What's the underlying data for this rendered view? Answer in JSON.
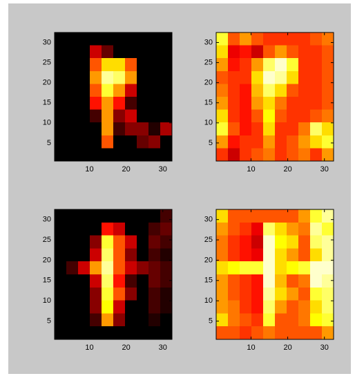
{
  "chart_data": [
    {
      "type": "heatmap",
      "colormap": "hot",
      "xlim": [
        0.5,
        32.5
      ],
      "ylim": [
        0.5,
        32.5
      ],
      "xticks": [
        10,
        20,
        30
      ],
      "yticks": [
        5,
        10,
        15,
        20,
        25,
        30
      ],
      "z": [
        [
          0,
          0,
          0,
          0,
          0,
          0,
          0,
          0,
          0,
          0
        ],
        [
          0,
          0,
          0,
          0.3,
          0.15,
          0,
          0,
          0,
          0,
          0
        ],
        [
          0,
          0,
          0,
          0.5,
          0.7,
          0.7,
          0.5,
          0,
          0,
          0
        ],
        [
          0,
          0,
          0,
          0.6,
          0.9,
          0.85,
          0.6,
          0,
          0,
          0
        ],
        [
          0,
          0,
          0,
          0.5,
          0.8,
          0.6,
          0.3,
          0,
          0,
          0
        ],
        [
          0,
          0,
          0,
          0.4,
          0.6,
          0.4,
          0.1,
          0,
          0,
          0
        ],
        [
          0,
          0,
          0,
          0.1,
          0.6,
          0.2,
          0.3,
          0,
          0,
          0
        ],
        [
          0,
          0,
          0,
          0,
          0.6,
          0.1,
          0.2,
          0.2,
          0.05,
          0.25
        ],
        [
          0,
          0,
          0,
          0,
          0.5,
          0,
          0,
          0.15,
          0.2,
          0
        ],
        [
          0,
          0,
          0,
          0,
          0,
          0,
          0,
          0,
          0,
          0
        ]
      ]
    },
    {
      "type": "heatmap",
      "colormap": "hot",
      "xlim": [
        0.5,
        32.5
      ],
      "ylim": [
        0.5,
        32.5
      ],
      "xticks": [
        10,
        20,
        30
      ],
      "yticks": [
        5,
        10,
        15,
        20,
        25,
        30
      ],
      "z": [
        [
          0.8,
          0.5,
          0.6,
          0.5,
          0.45,
          0.45,
          0.45,
          0.45,
          0.5,
          0.55
        ],
        [
          0.7,
          0.35,
          0.4,
          0.3,
          0.5,
          0.6,
          0.5,
          0.45,
          0.45,
          0.5
        ],
        [
          0.6,
          0.4,
          0.45,
          0.6,
          0.85,
          0.95,
          0.8,
          0.45,
          0.45,
          0.5
        ],
        [
          0.5,
          0.45,
          0.45,
          0.7,
          0.95,
          0.9,
          0.7,
          0.45,
          0.45,
          0.5
        ],
        [
          0.55,
          0.45,
          0.4,
          0.65,
          0.85,
          0.7,
          0.5,
          0.45,
          0.45,
          0.5
        ],
        [
          0.6,
          0.45,
          0.4,
          0.6,
          0.7,
          0.55,
          0.45,
          0.45,
          0.45,
          0.5
        ],
        [
          0.7,
          0.45,
          0.4,
          0.5,
          0.75,
          0.5,
          0.45,
          0.45,
          0.5,
          0.55
        ],
        [
          0.8,
          0.5,
          0.4,
          0.45,
          0.7,
          0.45,
          0.45,
          0.55,
          0.85,
          0.7
        ],
        [
          0.6,
          0.4,
          0.45,
          0.45,
          0.6,
          0.45,
          0.5,
          0.6,
          0.7,
          0.8
        ],
        [
          0.45,
          0.3,
          0.45,
          0.5,
          0.55,
          0.45,
          0.5,
          0.55,
          0.45,
          0.6
        ]
      ]
    },
    {
      "type": "heatmap",
      "colormap": "hot",
      "xlim": [
        0.5,
        32.5
      ],
      "ylim": [
        0.5,
        32.5
      ],
      "xticks": [
        10,
        20,
        30
      ],
      "yticks": [
        5,
        10,
        15,
        20,
        25,
        30
      ],
      "z": [
        [
          0,
          0,
          0,
          0,
          0,
          0,
          0,
          0,
          0,
          0.1
        ],
        [
          0,
          0,
          0,
          0,
          0.4,
          0.3,
          0,
          0,
          0.1,
          0.15
        ],
        [
          0,
          0,
          0,
          0.2,
          0.8,
          0.5,
          0.3,
          0,
          0.15,
          0.1
        ],
        [
          0,
          0,
          0,
          0.3,
          0.85,
          0.5,
          0.2,
          0,
          0.1,
          0.05
        ],
        [
          0,
          0.1,
          0.3,
          0.6,
          0.9,
          0.5,
          0.3,
          0.2,
          0.15,
          0.1
        ],
        [
          0,
          0,
          0,
          0.3,
          0.85,
          0.4,
          0.1,
          0,
          0.15,
          0.1
        ],
        [
          0,
          0,
          0,
          0.2,
          0.8,
          0.5,
          0.2,
          0,
          0.1,
          0.05
        ],
        [
          0,
          0,
          0,
          0.2,
          0.75,
          0.3,
          0,
          0,
          0.1,
          0.05
        ],
        [
          0,
          0,
          0,
          0.1,
          0.6,
          0.2,
          0,
          0,
          0.05,
          0
        ],
        [
          0,
          0,
          0,
          0,
          0,
          0,
          0,
          0,
          0,
          0
        ]
      ]
    },
    {
      "type": "heatmap",
      "colormap": "hot",
      "xlim": [
        0.5,
        32.5
      ],
      "ylim": [
        0.5,
        32.5
      ],
      "xticks": [
        10,
        20,
        30
      ],
      "yticks": [
        5,
        10,
        15,
        20,
        25,
        30
      ],
      "z": [
        [
          0.7,
          0.5,
          0.5,
          0.5,
          0.5,
          0.5,
          0.5,
          0.6,
          0.8,
          0.9
        ],
        [
          0.6,
          0.5,
          0.45,
          0.35,
          0.85,
          0.7,
          0.6,
          0.55,
          0.9,
          0.8
        ],
        [
          0.55,
          0.45,
          0.4,
          0.3,
          0.95,
          0.75,
          0.7,
          0.5,
          0.85,
          0.9
        ],
        [
          0.55,
          0.45,
          0.4,
          0.35,
          0.95,
          0.7,
          0.6,
          0.5,
          0.7,
          0.9
        ],
        [
          0.7,
          0.75,
          0.8,
          0.8,
          0.95,
          0.7,
          0.75,
          0.8,
          0.95,
          0.95
        ],
        [
          0.6,
          0.5,
          0.45,
          0.4,
          0.95,
          0.65,
          0.5,
          0.55,
          0.95,
          0.9
        ],
        [
          0.6,
          0.5,
          0.45,
          0.4,
          0.9,
          0.7,
          0.6,
          0.5,
          0.8,
          0.85
        ],
        [
          0.6,
          0.55,
          0.45,
          0.4,
          0.85,
          0.6,
          0.5,
          0.55,
          0.7,
          0.85
        ],
        [
          0.7,
          0.55,
          0.5,
          0.45,
          0.8,
          0.5,
          0.5,
          0.55,
          0.75,
          0.8
        ],
        [
          0.5,
          0.5,
          0.45,
          0.5,
          0.55,
          0.5,
          0.5,
          0.5,
          0.5,
          0.6
        ]
      ]
    }
  ]
}
